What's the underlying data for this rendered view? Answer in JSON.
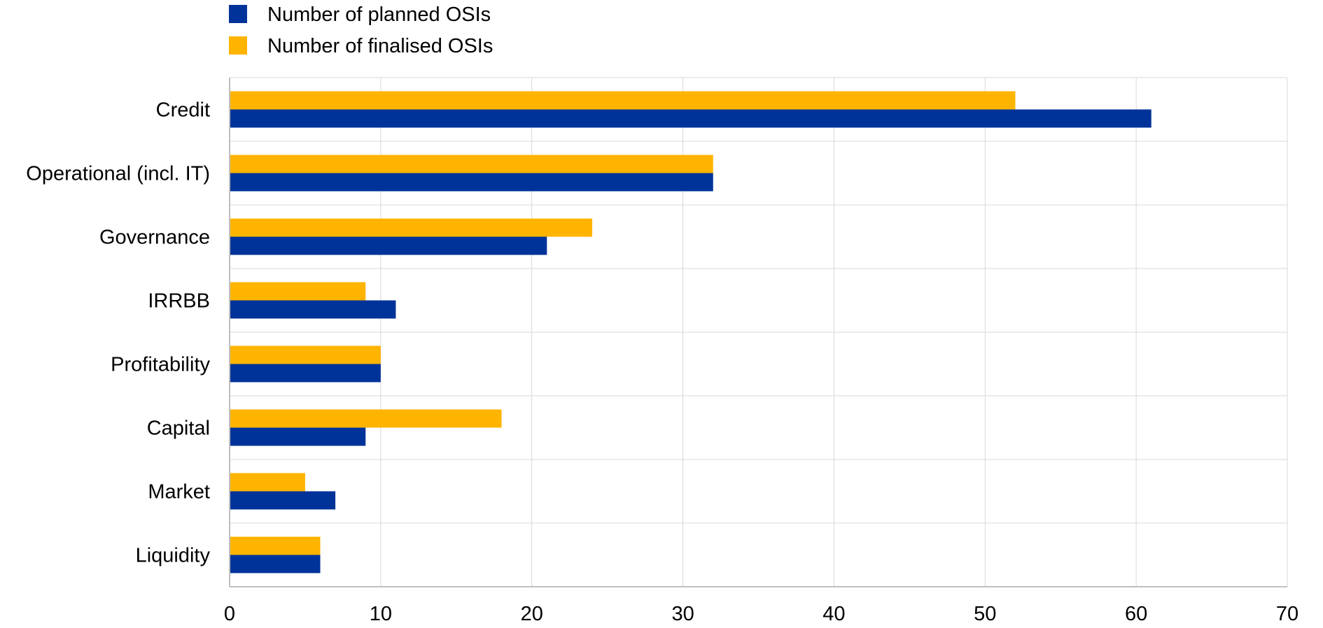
{
  "chart_data": {
    "type": "bar",
    "orientation": "horizontal",
    "title": "",
    "xlabel": "",
    "ylabel": "",
    "categories": [
      "Credit",
      "Operational (incl. IT)",
      "Governance",
      "IRRBB",
      "Profitability",
      "Capital",
      "Market",
      "Liquidity"
    ],
    "series": [
      {
        "name": "Number of planned OSIs",
        "color": "#003399",
        "values": [
          61,
          32,
          21,
          11,
          10,
          9,
          7,
          6
        ]
      },
      {
        "name": "Number of finalised OSIs",
        "color": "#FFB400",
        "values": [
          52,
          32,
          24,
          9,
          10,
          18,
          5,
          6
        ]
      }
    ],
    "xlim": [
      0,
      70
    ],
    "xticks": [
      "0",
      "10",
      "20",
      "30",
      "40",
      "50",
      "60",
      "70"
    ],
    "grid": true,
    "legend_position": "top-left"
  }
}
